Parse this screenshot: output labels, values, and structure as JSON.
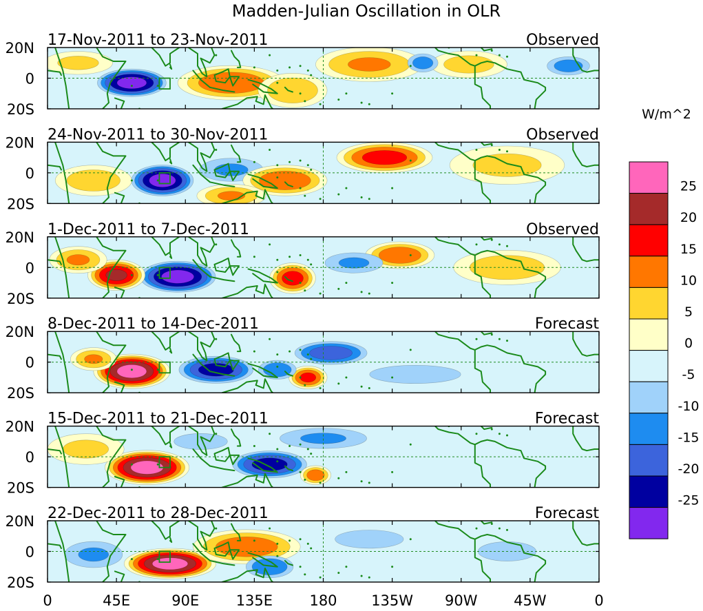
{
  "chart_data": {
    "type": "heatmap",
    "title": "Madden-Julian Oscillation in OLR",
    "units": "W/m^2",
    "x_tick_labels": [
      "0",
      "45E",
      "90E",
      "135E",
      "180",
      "135W",
      "90W",
      "45W",
      "0"
    ],
    "x_range_deg_east": [
      0,
      360
    ],
    "y_tick_labels": [
      "20N",
      "0",
      "20S"
    ],
    "y_range_deg": [
      -20,
      20
    ],
    "colorbar": {
      "labels": [
        "25",
        "20",
        "15",
        "10",
        "5",
        "0",
        "-5",
        "-10",
        "-15",
        "-20",
        "-25"
      ],
      "levels": [
        25,
        20,
        15,
        10,
        5,
        0,
        -5,
        -10,
        -15,
        -20,
        -25
      ],
      "colors": [
        "#ff66bb",
        "#a52a2a",
        "#ff0000",
        "#ff7700",
        "#ffd630",
        "#ffffc8",
        "#d7f4fb",
        "#a0d2fa",
        "#1e8cf0",
        "#3c64dc",
        "#0000a0",
        "#8228ee"
      ]
    },
    "panels": [
      {
        "period": "17-Nov-2011 to 23-Nov-2011",
        "status": "Observed",
        "anomalies": [
          {
            "lon": 55,
            "lat": -3,
            "value": -27,
            "sx": 20,
            "sy": 8
          },
          {
            "lon": 120,
            "lat": -3,
            "value": 14,
            "sx": 28,
            "sy": 9
          },
          {
            "lon": 160,
            "lat": -8,
            "value": 9,
            "sx": 18,
            "sy": 9
          },
          {
            "lon": 210,
            "lat": 9,
            "value": 10,
            "sx": 28,
            "sy": 9
          },
          {
            "lon": 275,
            "lat": 9,
            "value": 7,
            "sx": 20,
            "sy": 7
          },
          {
            "lon": 340,
            "lat": 8,
            "value": -12,
            "sx": 14,
            "sy": 6
          },
          {
            "lon": 245,
            "lat": 10,
            "value": -12,
            "sx": 10,
            "sy": 6
          },
          {
            "lon": 20,
            "lat": 10,
            "value": 6,
            "sx": 18,
            "sy": 6
          },
          {
            "lon": 300,
            "lat": -12,
            "value": -4,
            "sx": 40,
            "sy": 8
          }
        ]
      },
      {
        "period": "24-Nov-2011 to 30-Nov-2011",
        "status": "Observed",
        "anomalies": [
          {
            "lon": 75,
            "lat": -5,
            "value": -27,
            "sx": 18,
            "sy": 9
          },
          {
            "lon": 120,
            "lat": 2,
            "value": -10,
            "sx": 22,
            "sy": 8
          },
          {
            "lon": 155,
            "lat": -5,
            "value": 14,
            "sx": 22,
            "sy": 8
          },
          {
            "lon": 220,
            "lat": 10,
            "value": 17,
            "sx": 25,
            "sy": 8
          },
          {
            "lon": 30,
            "lat": -5,
            "value": 8,
            "sx": 20,
            "sy": 8
          },
          {
            "lon": 300,
            "lat": 5,
            "value": 6,
            "sx": 30,
            "sy": 10
          },
          {
            "lon": 120,
            "lat": -15,
            "value": 10,
            "sx": 18,
            "sy": 6
          }
        ]
      },
      {
        "period": "1-Dec-2011 to 7-Dec-2011",
        "status": "Observed",
        "anomalies": [
          {
            "lon": 85,
            "lat": -6,
            "value": -27,
            "sx": 22,
            "sy": 9
          },
          {
            "lon": 45,
            "lat": -5,
            "value": 21,
            "sx": 15,
            "sy": 8
          },
          {
            "lon": 160,
            "lat": -7,
            "value": 17,
            "sx": 12,
            "sy": 8
          },
          {
            "lon": 230,
            "lat": 8,
            "value": 14,
            "sx": 18,
            "sy": 7
          },
          {
            "lon": 200,
            "lat": 3,
            "value": -10,
            "sx": 20,
            "sy": 7
          },
          {
            "lon": 20,
            "lat": 5,
            "value": 10,
            "sx": 15,
            "sy": 7
          },
          {
            "lon": 300,
            "lat": 0,
            "value": 8,
            "sx": 28,
            "sy": 9
          }
        ]
      },
      {
        "period": "8-Dec-2011 to 14-Dec-2011",
        "status": "Forecast",
        "anomalies": [
          {
            "lon": 55,
            "lat": -6,
            "value": 27,
            "sx": 20,
            "sy": 9
          },
          {
            "lon": 110,
            "lat": -5,
            "value": -22,
            "sx": 22,
            "sy": 8
          },
          {
            "lon": 185,
            "lat": 6,
            "value": -18,
            "sx": 22,
            "sy": 7
          },
          {
            "lon": 170,
            "lat": -10,
            "value": 16,
            "sx": 10,
            "sy": 6
          },
          {
            "lon": 150,
            "lat": -5,
            "value": -14,
            "sx": 12,
            "sy": 6
          },
          {
            "lon": 30,
            "lat": 2,
            "value": 10,
            "sx": 12,
            "sy": 6
          },
          {
            "lon": 240,
            "lat": -8,
            "value": -6,
            "sx": 40,
            "sy": 8
          }
        ]
      },
      {
        "period": "15-Dec-2011 to 21-Dec-2011",
        "status": "Forecast",
        "anomalies": [
          {
            "lon": 65,
            "lat": -7,
            "value": 27,
            "sx": 22,
            "sy": 9
          },
          {
            "lon": 145,
            "lat": -5,
            "value": -22,
            "sx": 22,
            "sy": 8
          },
          {
            "lon": 180,
            "lat": 12,
            "value": -10,
            "sx": 30,
            "sy": 7
          },
          {
            "lon": 100,
            "lat": 10,
            "value": -8,
            "sx": 20,
            "sy": 6
          },
          {
            "lon": 175,
            "lat": -12,
            "value": 13,
            "sx": 8,
            "sy": 5
          },
          {
            "lon": 25,
            "lat": 5,
            "value": 6,
            "sx": 20,
            "sy": 8
          }
        ]
      },
      {
        "period": "22-Dec-2011 to 28-Dec-2011",
        "status": "Forecast",
        "anomalies": [
          {
            "lon": 80,
            "lat": -8,
            "value": 27,
            "sx": 24,
            "sy": 8
          },
          {
            "lon": 130,
            "lat": 3,
            "value": 13,
            "sx": 28,
            "sy": 9
          },
          {
            "lon": 145,
            "lat": -10,
            "value": -14,
            "sx": 15,
            "sy": 7
          },
          {
            "lon": 30,
            "lat": -2,
            "value": -10,
            "sx": 20,
            "sy": 9
          },
          {
            "lon": 210,
            "lat": 8,
            "value": -6,
            "sx": 30,
            "sy": 8
          },
          {
            "lon": 300,
            "lat": 0,
            "value": -5,
            "sx": 30,
            "sy": 10
          }
        ]
      }
    ]
  }
}
